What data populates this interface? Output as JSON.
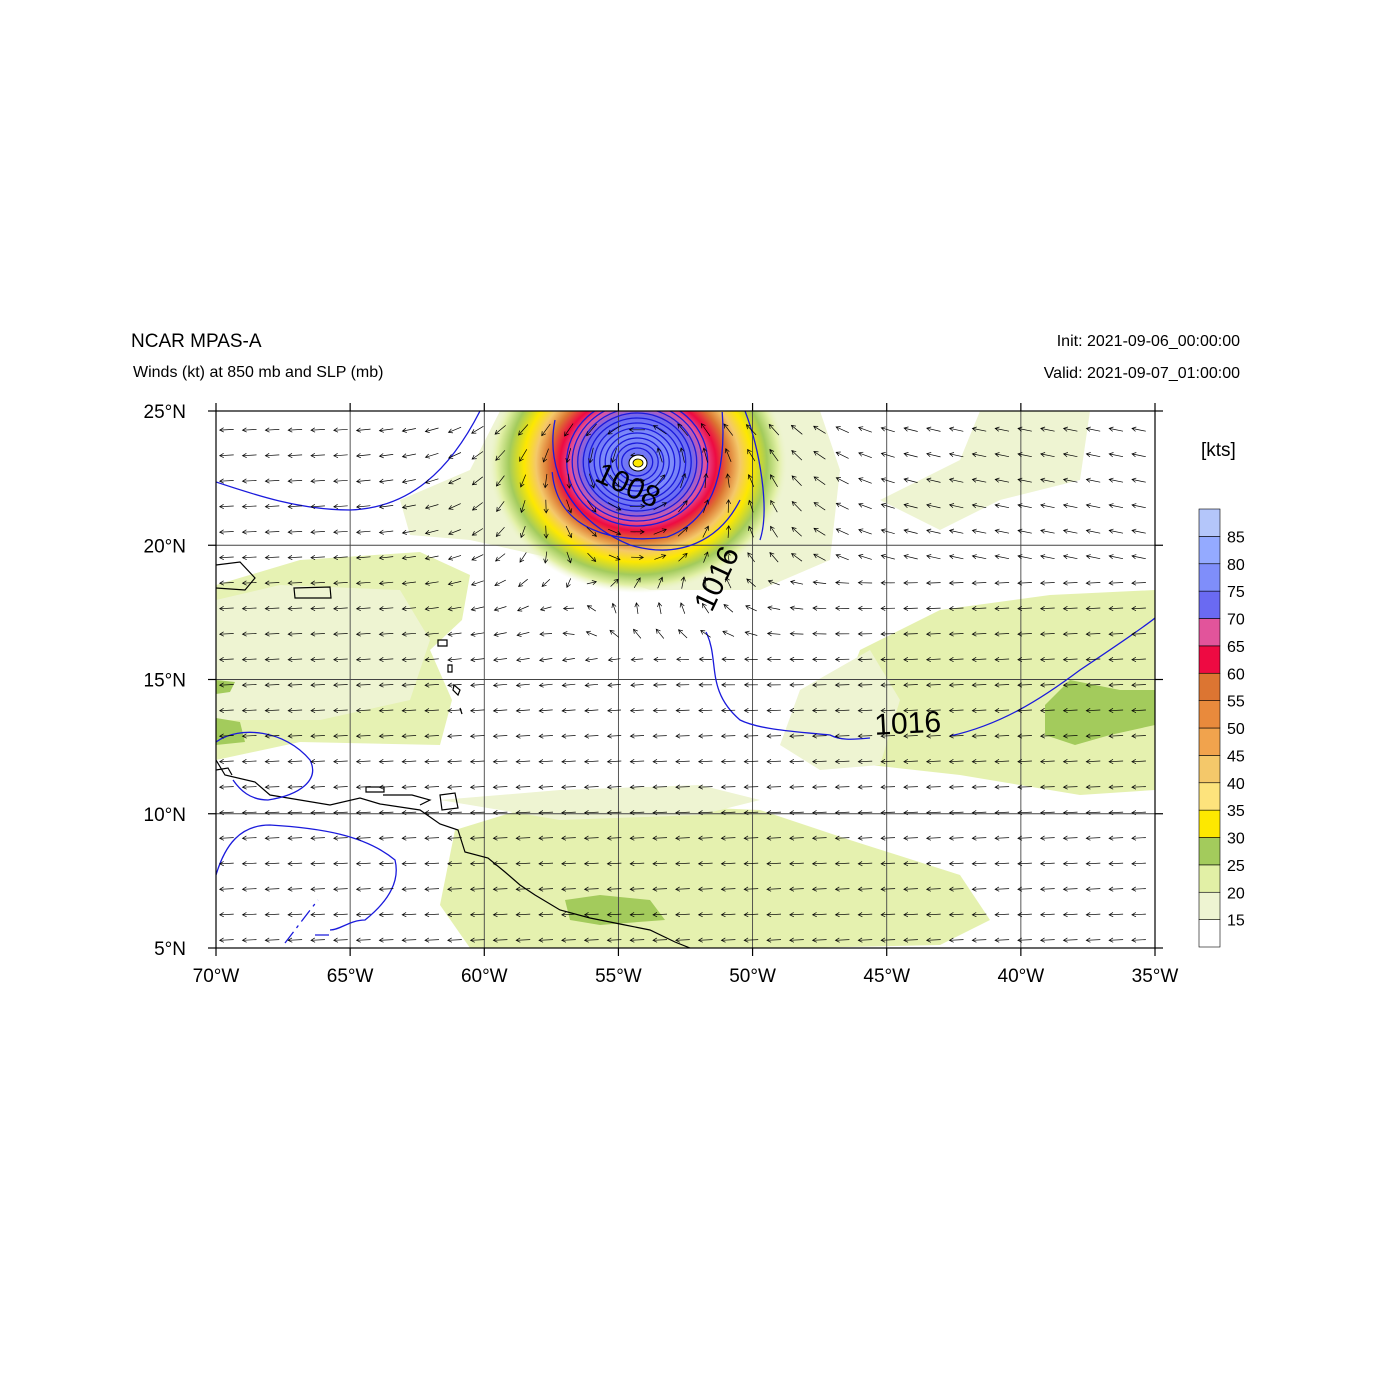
{
  "header": {
    "title": "NCAR MPAS-A",
    "subtitle": "Winds (kt) at 850 mb and SLP (mb)",
    "init": "Init: 2021-09-06_00:00:00",
    "valid": "Valid: 2021-09-07_01:00:00"
  },
  "map": {
    "lon_range": [
      -70,
      -35
    ],
    "lat_range": [
      5,
      25
    ],
    "lon_ticks": [
      {
        "lon": -70,
        "label": "70°W"
      },
      {
        "lon": -65,
        "label": "65°W"
      },
      {
        "lon": -60,
        "label": "60°W"
      },
      {
        "lon": -55,
        "label": "55°W"
      },
      {
        "lon": -50,
        "label": "50°W"
      },
      {
        "lon": -45,
        "label": "45°W"
      },
      {
        "lon": -40,
        "label": "40°W"
      },
      {
        "lon": -35,
        "label": "35°W"
      }
    ],
    "lat_ticks": [
      {
        "lat": 5,
        "label": "5°N"
      },
      {
        "lat": 10,
        "label": "10°N"
      },
      {
        "lat": 15,
        "label": "15°N"
      },
      {
        "lat": 20,
        "label": "20°N"
      },
      {
        "lat": 25,
        "label": "25°N"
      }
    ],
    "grid": true,
    "storm_center": {
      "lon": -54.3,
      "lat": 23.1
    },
    "isobar_labels": [
      {
        "text": "1008",
        "lon": -54.8,
        "lat": 21.9,
        "angle": 25
      },
      {
        "text": "1016",
        "lon": -51.0,
        "lat": 18.6,
        "angle": -65
      },
      {
        "text": "1016",
        "lon": -44.2,
        "lat": 13.0,
        "angle": -3
      }
    ],
    "isobar_color": "#1a1adc",
    "coast_color": "#000000",
    "vector_color": "#000000"
  },
  "colorbar": {
    "units": "[kts]",
    "labels": [
      "15",
      "20",
      "25",
      "30",
      "35",
      "40",
      "45",
      "50",
      "55",
      "60",
      "65",
      "70",
      "75",
      "80",
      "85"
    ],
    "colors": [
      "#ffffff",
      "#eef4d2",
      "#e2f0a6",
      "#a3cb5c",
      "#fde800",
      "#fde37c",
      "#f4c86a",
      "#f1a34d",
      "#e98a3c",
      "#dc7532",
      "#ee0a42",
      "#e2549b",
      "#6a6af2",
      "#7f8efa",
      "#94aaff",
      "#b4c6fa"
    ]
  }
}
